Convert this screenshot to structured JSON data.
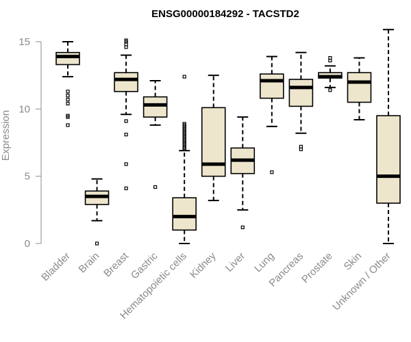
{
  "chart_data": {
    "type": "box",
    "title": "ENSG00000184292 - TACSTD2",
    "xlabel": "",
    "ylabel": "Expression",
    "ylim": [
      0,
      16
    ],
    "yticks": [
      0,
      5,
      10,
      15
    ],
    "box_fill": "#ede6cd",
    "categories": [
      "Bladder",
      "Brain",
      "Breast",
      "Gastric",
      "Hematopoietic cells",
      "Kidney",
      "Liver",
      "Lung",
      "Pancreas",
      "Prostate",
      "Skin",
      "Unknown / Other"
    ],
    "boxes": [
      {
        "category": "Bladder",
        "whisker_low": 12.4,
        "q1": 13.3,
        "median": 13.9,
        "q3": 14.2,
        "whisker_high": 15.0,
        "outliers": [
          11.3,
          11.0,
          10.7,
          10.4,
          9.5,
          9.4,
          8.8
        ]
      },
      {
        "category": "Brain",
        "whisker_low": 1.7,
        "q1": 2.9,
        "median": 3.5,
        "q3": 3.9,
        "whisker_high": 4.8,
        "outliers": [
          0.0
        ]
      },
      {
        "category": "Breast",
        "whisker_low": 9.6,
        "q1": 11.3,
        "median": 12.2,
        "q3": 12.7,
        "whisker_high": 14.0,
        "outliers": [
          15.1,
          15.0,
          14.8,
          14.6,
          9.1,
          8.1,
          5.9,
          4.1
        ]
      },
      {
        "category": "Gastric",
        "whisker_low": 8.8,
        "q1": 9.4,
        "median": 10.3,
        "q3": 10.9,
        "whisker_high": 12.1,
        "outliers": [
          4.2
        ]
      },
      {
        "category": "Hematopoietic cells",
        "whisker_low": 0.0,
        "q1": 1.0,
        "median": 2.0,
        "q3": 3.4,
        "whisker_high": 6.9,
        "outliers": [
          12.4,
          8.9,
          8.8,
          8.7,
          8.6,
          8.5,
          8.4,
          8.3,
          8.2,
          8.1,
          8.0,
          7.9,
          7.8,
          7.7,
          7.6,
          7.5,
          7.4,
          7.3,
          7.2,
          7.1,
          7.0
        ]
      },
      {
        "category": "Kidney",
        "whisker_low": 3.2,
        "q1": 5.0,
        "median": 5.9,
        "q3": 10.1,
        "whisker_high": 12.5,
        "outliers": []
      },
      {
        "category": "Liver",
        "whisker_low": 2.5,
        "q1": 5.2,
        "median": 6.2,
        "q3": 7.1,
        "whisker_high": 9.4,
        "outliers": [
          1.2
        ]
      },
      {
        "category": "Lung",
        "whisker_low": 8.7,
        "q1": 10.8,
        "median": 12.1,
        "q3": 12.6,
        "whisker_high": 13.9,
        "outliers": [
          5.3
        ]
      },
      {
        "category": "Pancreas",
        "whisker_low": 8.2,
        "q1": 10.2,
        "median": 11.6,
        "q3": 12.2,
        "whisker_high": 14.2,
        "outliers": [
          7.2,
          7.0
        ]
      },
      {
        "category": "Prostate",
        "whisker_low": 11.6,
        "q1": 12.3,
        "median": 12.4,
        "q3": 12.7,
        "whisker_high": 13.2,
        "outliers": [
          13.8,
          13.6,
          11.4
        ]
      },
      {
        "category": "Skin",
        "whisker_low": 9.2,
        "q1": 10.5,
        "median": 12.0,
        "q3": 12.7,
        "whisker_high": 13.8,
        "outliers": []
      },
      {
        "category": "Unknown / Other",
        "whisker_low": 0.0,
        "q1": 3.0,
        "median": 5.0,
        "q3": 9.5,
        "whisker_high": 15.9,
        "outliers": []
      }
    ]
  }
}
